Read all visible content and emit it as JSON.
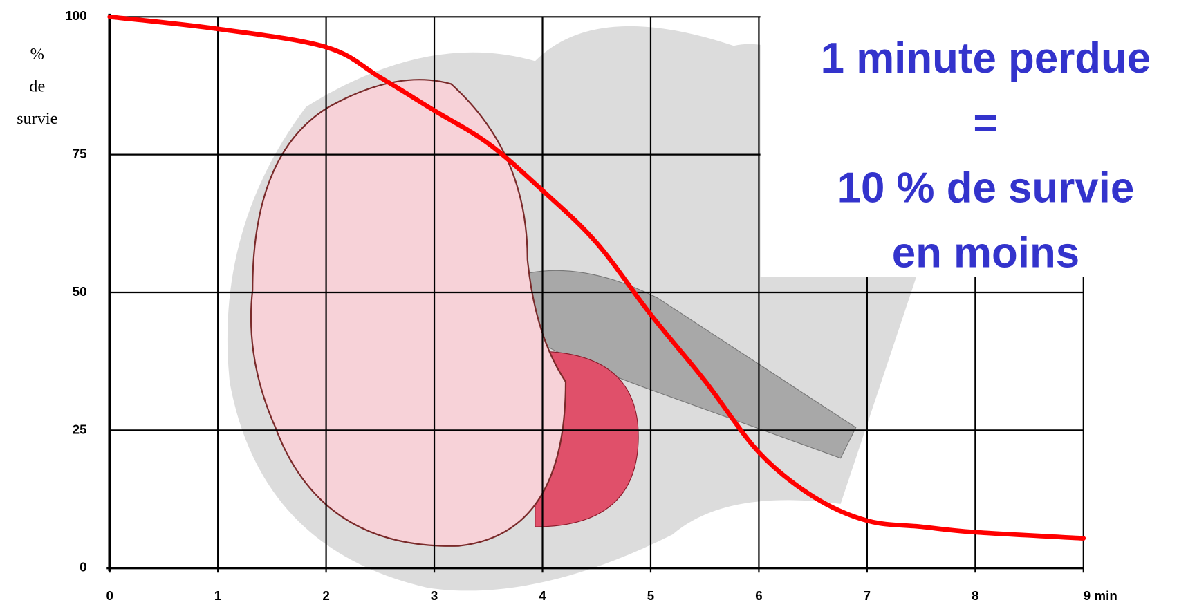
{
  "chart_data": {
    "type": "line",
    "ylabel_lines": [
      "%",
      "de",
      "survie"
    ],
    "annotation_lines": [
      "1 minute perdue",
      "=",
      "10 % de survie",
      "en moins"
    ],
    "x": [
      0,
      1,
      2,
      2.5,
      3,
      3.5,
      4,
      4.5,
      5,
      5.5,
      6,
      6.5,
      7,
      7.5,
      8,
      9
    ],
    "series": [
      {
        "color": "#ff0000",
        "values": [
          100,
          97.8,
          94.5,
          89,
          83,
          77,
          68.5,
          59,
          46,
          34,
          21,
          13,
          8.6,
          7.5,
          6.5,
          5.4
        ]
      }
    ],
    "xlim": [
      0,
      9
    ],
    "xticks": [
      0,
      1,
      2,
      3,
      4,
      5,
      6,
      7,
      8,
      {
        "value": 9,
        "label": "9 min"
      }
    ],
    "ylim": [
      0,
      100
    ],
    "yticks": [
      0,
      25,
      50,
      75,
      100
    ],
    "grid": true
  }
}
